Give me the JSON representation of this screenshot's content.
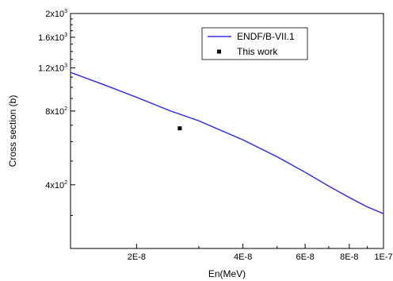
{
  "chart_data": {
    "type": "line",
    "xlabel": "En(MeV)",
    "ylabel": "Cross section (b)",
    "xscale": "log",
    "yscale": "log",
    "xlim": [
      1.3e-08,
      1e-07
    ],
    "ylim": [
      220,
      2000
    ],
    "x_ticks": [
      {
        "value": 2e-08,
        "label": "2E-8"
      },
      {
        "value": 4e-08,
        "label": "4E-8"
      },
      {
        "value": 6e-08,
        "label": "6E-8"
      },
      {
        "value": 8e-08,
        "label": "8E-8"
      },
      {
        "value": 1e-07,
        "label": "1E-7"
      }
    ],
    "y_ticks": [
      {
        "value": 400,
        "mantissa": "4x10",
        "exp": "2"
      },
      {
        "value": 800,
        "mantissa": "8x10",
        "exp": "2"
      },
      {
        "value": 1200,
        "mantissa": "1.2x10",
        "exp": "3"
      },
      {
        "value": 1600,
        "mantissa": "1.6x10",
        "exp": "3"
      },
      {
        "value": 2000,
        "mantissa": "2x10",
        "exp": "3"
      }
    ],
    "legend_position": "top-right",
    "series": [
      {
        "name": "ENDF/B-VII.1",
        "kind": "line",
        "color": "#3333ee",
        "x": [
          1.3e-08,
          1.6e-08,
          2e-08,
          2.5e-08,
          3e-08,
          4e-08,
          5e-08,
          6e-08,
          7e-08,
          8e-08,
          9e-08,
          1e-07
        ],
        "y": [
          1150,
          1030,
          910,
          800,
          730,
          610,
          520,
          450,
          395,
          355,
          325,
          305
        ]
      },
      {
        "name": "This work",
        "kind": "scatter",
        "color": "#000000",
        "x": [
          2.65e-08
        ],
        "y": [
          680
        ]
      }
    ]
  }
}
